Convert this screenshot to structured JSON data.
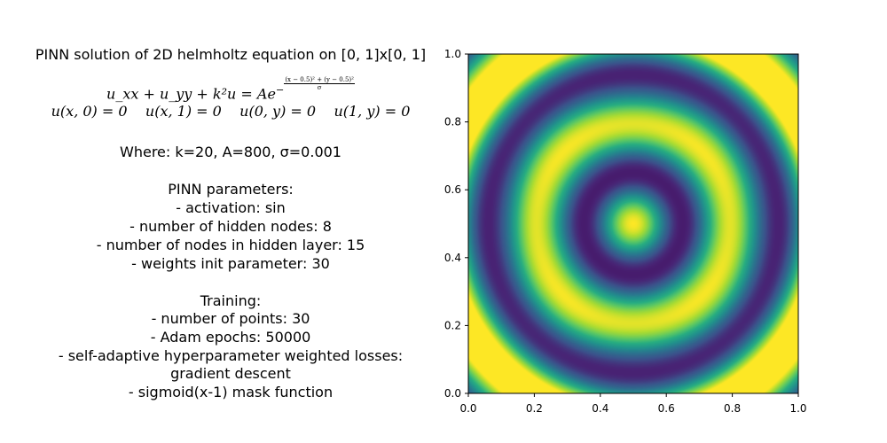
{
  "description": {
    "title": "PINN solution of 2D helmholtz equation on [0, 1]x[0, 1]",
    "equation_lhs": "u_xx + u_yy + k²u = Ae",
    "exponent_numerator": "(x − 0.5)² + (y − 0.5)²",
    "exponent_denominator": "σ",
    "boundary_conditions": [
      "u(x, 0) = 0",
      "u(x, 1) = 0",
      "u(0, y) = 0",
      "u(1, y) = 0"
    ],
    "where": "Where: k=20, A=800, σ=0.001",
    "pinn_header": "PINN parameters:",
    "pinn_params": [
      "- activation: sin",
      "- number of hidden nodes: 8",
      "- number of nodes in hidden layer: 15",
      "- weights init parameter: 30"
    ],
    "training_header": "Training:",
    "training_params": [
      "- number of points: 30",
      "- Adam epochs: 50000",
      "- self-adaptive hyperparameter weighted losses:",
      "gradient descent",
      "- sigmoid(x-1) mask function"
    ]
  },
  "chart_data": {
    "type": "heatmap",
    "title": "",
    "xlabel": "",
    "ylabel": "",
    "xlim": [
      0.0,
      1.0
    ],
    "ylim": [
      0.0,
      1.0
    ],
    "xticks": [
      "0.0",
      "0.2",
      "0.4",
      "0.6",
      "0.8",
      "1.0"
    ],
    "yticks": [
      "0.0",
      "0.2",
      "0.4",
      "0.6",
      "0.8",
      "1.0"
    ],
    "colormap": "viridis",
    "field": "radially symmetric oscillation centred at (0.5, 0.5): bright centre spot, dark ring near r≈0.07, bright ring near r≈0.22, dark ring near r≈0.33, bright corners",
    "grid": false,
    "colors": {
      "low": "#440154",
      "mid": "#21918c",
      "high": "#fde725"
    }
  }
}
